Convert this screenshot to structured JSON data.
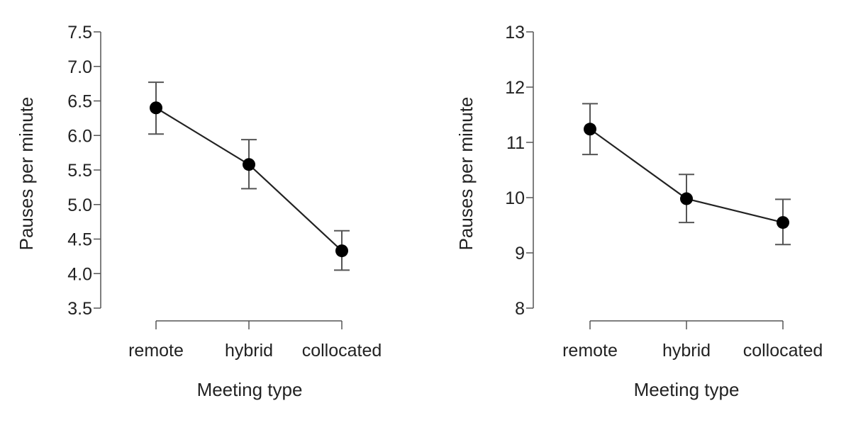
{
  "chart_data": [
    {
      "type": "line",
      "title": "",
      "xlabel": "Meeting type",
      "ylabel": "Pauses per minute",
      "categories": [
        "remote",
        "hybrid",
        "collocated"
      ],
      "yticks": [
        "3.5",
        "4.0",
        "4.5",
        "5.0",
        "5.5",
        "6.0",
        "6.5",
        "7.0",
        "7.5"
      ],
      "ylim": [
        3.5,
        7.5
      ],
      "grid": false,
      "series": [
        {
          "values": [
            6.4,
            5.58,
            4.33
          ],
          "ci_lower": [
            6.02,
            5.23,
            4.05
          ],
          "ci_upper": [
            6.77,
            5.94,
            4.62
          ]
        }
      ]
    },
    {
      "type": "line",
      "title": "",
      "xlabel": "Meeting type",
      "ylabel": "Pauses per minute",
      "categories": [
        "remote",
        "hybrid",
        "collocated"
      ],
      "yticks": [
        "8",
        "9",
        "10",
        "11",
        "12",
        "13"
      ],
      "ylim": [
        8,
        13
      ],
      "grid": false,
      "series": [
        {
          "values": [
            11.24,
            9.98,
            9.55
          ],
          "ci_lower": [
            10.78,
            9.55,
            9.15
          ],
          "ci_upper": [
            11.7,
            10.42,
            9.97
          ]
        }
      ]
    }
  ]
}
